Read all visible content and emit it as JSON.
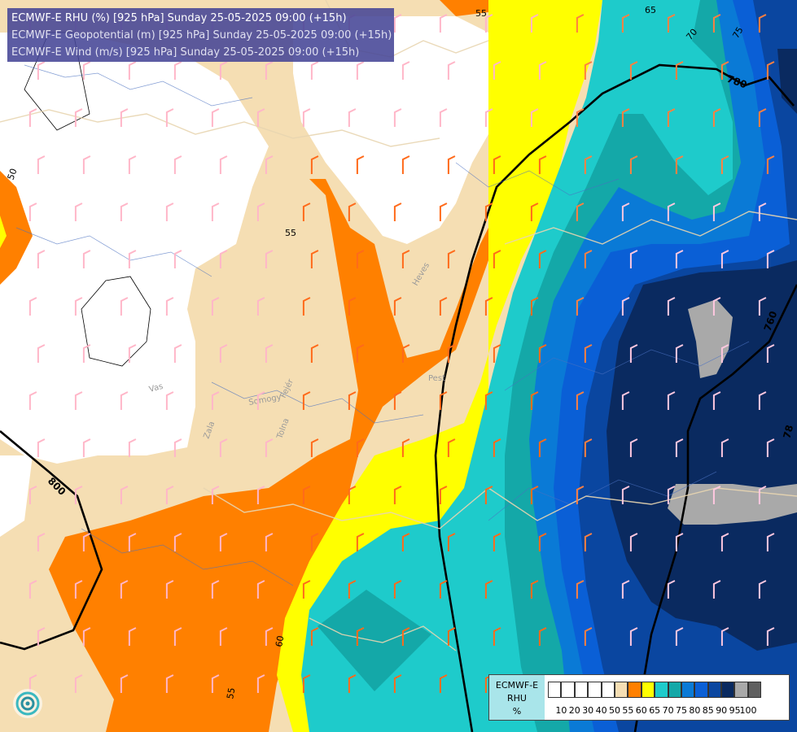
{
  "titles": {
    "line1": "ECMWF-E RHU (%) [925 hPa] Sunday 25-05-2025 09:00 (+15h)",
    "line2": "ECMWF-E Geopotential (m) [925 hPa] Sunday 25-05-2025 09:00 (+15h)",
    "line3": "ECMWF-E Wind (m/s) [925 hPa] Sunday 25-05-2025 09:00 (+15h)"
  },
  "legend": {
    "model": "ECMWF-E",
    "variable": "RHU",
    "unit": "%",
    "ticks": [
      "10",
      "20",
      "30",
      "40",
      "50",
      "55",
      "60",
      "65",
      "70",
      "75",
      "80",
      "85",
      "90",
      "95",
      "100"
    ],
    "colors": [
      "#ffffff",
      "#ffffff",
      "#ffffff",
      "#ffffff",
      "#ffffff",
      "#f5deb3",
      "#ff8000",
      "#ffff00",
      "#1ecbcb",
      "#14a8a8",
      "#0a7ad6",
      "#0a5fd6",
      "#0a46a0",
      "#0a2a60",
      "#a9a9a9",
      "#606060"
    ]
  },
  "contour_labels": {
    "rh": [
      "55",
      "50",
      "55",
      "60",
      "55",
      "65",
      "70",
      "75"
    ],
    "geopotential": [
      "800",
      "780",
      "760",
      "78"
    ]
  },
  "places": [
    "Heves",
    "Vas",
    "Somogy",
    "Fejér",
    "Zala",
    "Tolna",
    "Pest"
  ],
  "colors": {
    "white": "#ffffff",
    "rh55": "#f5deb3",
    "rh60": "#ff8000",
    "rh65": "#ffff00",
    "rh70": "#1ecbcb",
    "rh75": "#14a8a8",
    "rh80": "#0a7ad6",
    "rh85": "#0a5fd6",
    "rh90": "#0a46a0",
    "rh95": "#0a2a60",
    "rh100": "#a9a9a9",
    "title_bg": "#4646a0"
  }
}
